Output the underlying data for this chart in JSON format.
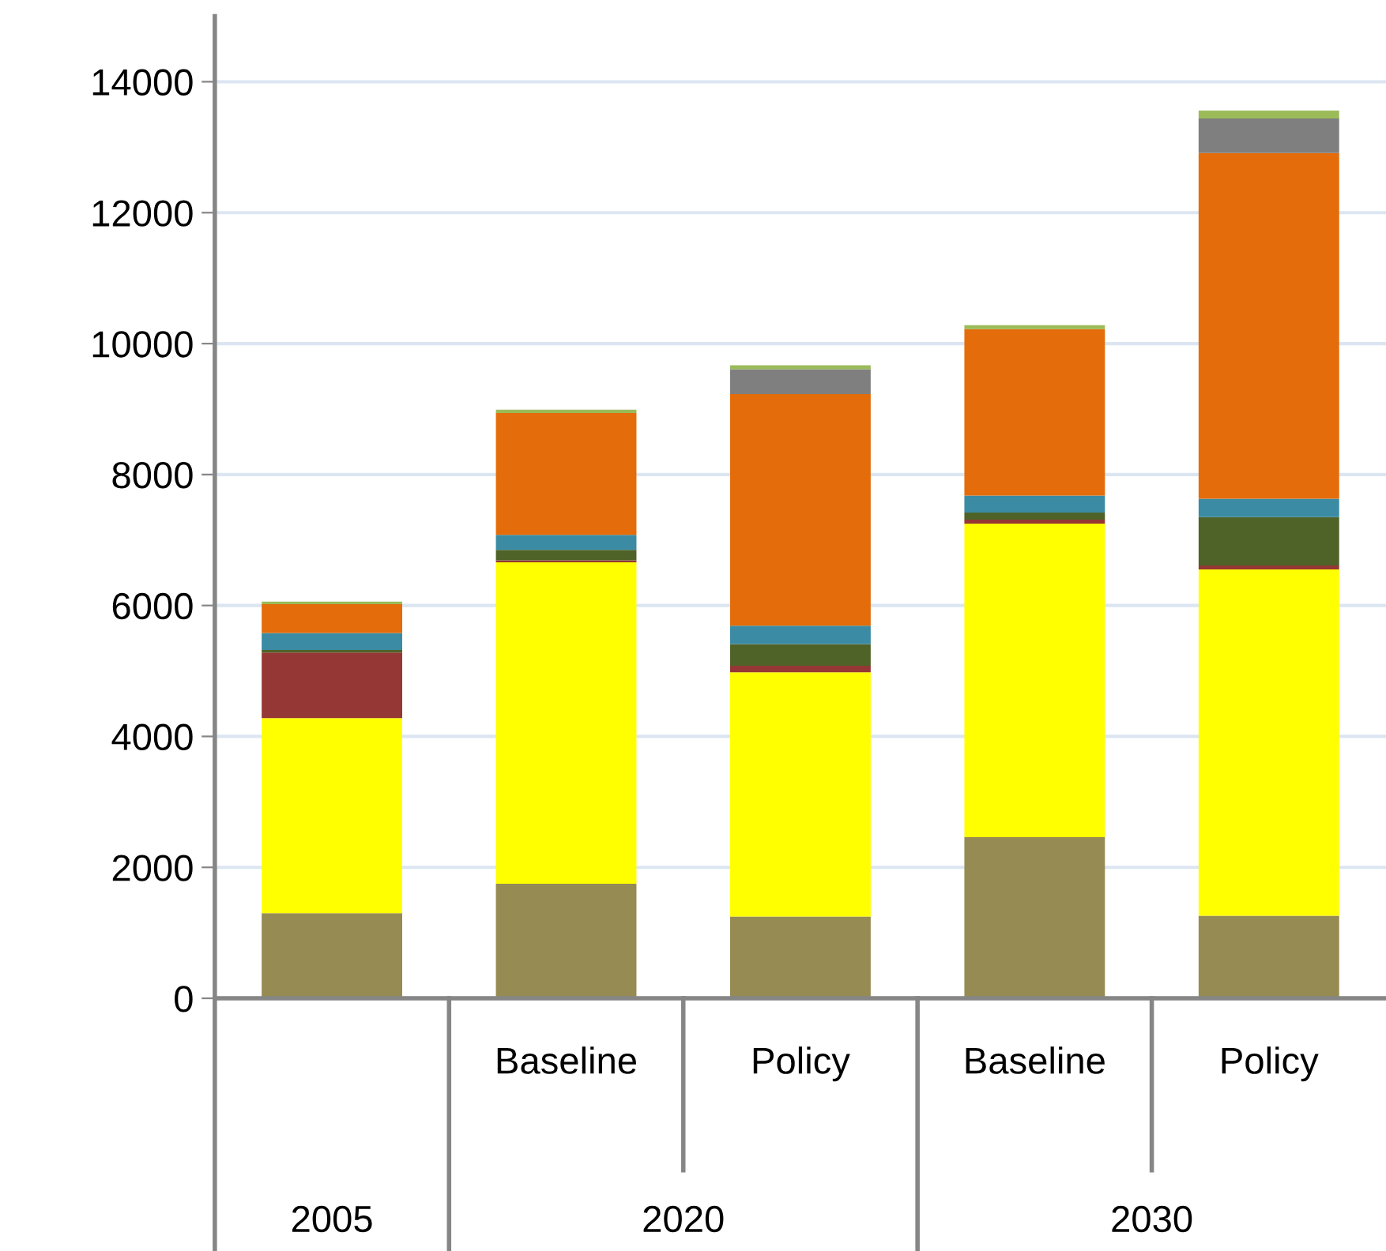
{
  "chart_data": {
    "type": "bar",
    "stacked": true,
    "categories": [
      null,
      "Baseline",
      "Policy",
      "Baseline",
      "Policy"
    ],
    "series": [
      {
        "color": "#968b53",
        "values": [
          1300,
          1750,
          1250,
          2460,
          1260
        ]
      },
      {
        "color": "#ffff00",
        "values": [
          2980,
          4910,
          3730,
          4790,
          5290
        ]
      },
      {
        "color": "#953735",
        "values": [
          1000,
          30,
          100,
          60,
          60
        ]
      },
      {
        "color": "#4f6228",
        "values": [
          40,
          160,
          330,
          110,
          740
        ]
      },
      {
        "color": "#3a8ba3",
        "values": [
          260,
          230,
          280,
          260,
          280
        ]
      },
      {
        "color": "#e46c0a",
        "values": [
          440,
          1860,
          3540,
          2540,
          5280
        ]
      },
      {
        "color": "#7f7f7f",
        "values": [
          0,
          0,
          380,
          0,
          530
        ]
      },
      {
        "color": "#9bbb59",
        "values": [
          40,
          50,
          60,
          60,
          120
        ]
      }
    ],
    "annotations": [
      "2005",
      "2020",
      "2030"
    ],
    "ylim": [
      0,
      15000
    ],
    "yticks": [
      0,
      2000,
      4000,
      6000,
      8000,
      10000,
      12000,
      14000
    ],
    "grid": "y",
    "legend": false
  }
}
